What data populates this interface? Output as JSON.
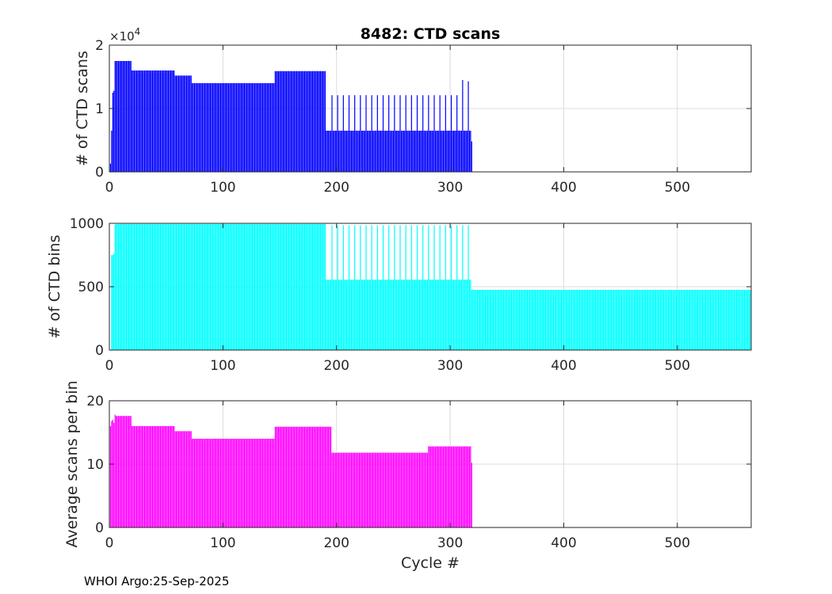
{
  "figure": {
    "title": "8482: CTD scans",
    "xlabel": "Cycle #",
    "footer": "WHOI Argo:25-Sep-2025"
  },
  "chart_data": [
    {
      "type": "bar",
      "id": "scans",
      "title": "8482: CTD scans",
      "ylabel": "# of CTD scans",
      "xlabel": "",
      "color": "#0000ff",
      "xlim": [
        0,
        565
      ],
      "ylim": [
        0,
        20000
      ],
      "xticks": [
        0,
        100,
        200,
        300,
        400,
        500
      ],
      "yticks": [
        0,
        10000,
        20000
      ],
      "ytick_labels": [
        "0",
        "1",
        "2"
      ],
      "exponent_label": "×10",
      "exponent_power": "4",
      "grid": true,
      "segments": [
        {
          "from": 1,
          "to": 5,
          "values": [
            1300,
            6500,
            12500,
            12800,
            17500
          ]
        },
        {
          "from": 6,
          "to": 19,
          "value": 17500
        },
        {
          "from": 20,
          "to": 57,
          "value": 16000
        },
        {
          "from": 58,
          "to": 72,
          "value": 15200
        },
        {
          "from": 73,
          "to": 145,
          "value": 14000
        },
        {
          "from": 146,
          "to": 190,
          "value": 15900
        },
        {
          "from": 191,
          "to": 318,
          "value": 6500
        },
        {
          "from": 319,
          "to": 319,
          "value": 4800
        }
      ],
      "spikes": {
        "from": 196,
        "to": 316,
        "step": 5,
        "value": 12100,
        "last_values": [
          14500,
          14300
        ]
      }
    },
    {
      "type": "bar",
      "id": "bins",
      "ylabel": "# of CTD bins",
      "xlabel": "",
      "color": "#00ffff",
      "xlim": [
        0,
        565
      ],
      "ylim": [
        0,
        1000
      ],
      "xticks": [
        0,
        100,
        200,
        300,
        400,
        500
      ],
      "yticks": [
        0,
        500,
        1000
      ],
      "ytick_labels": [
        "0",
        "500",
        "1000"
      ],
      "grid": true,
      "segments": [
        {
          "from": 1,
          "to": 5,
          "values": [
            0,
            750,
            750,
            760,
            990
          ]
        },
        {
          "from": 6,
          "to": 190,
          "value": 995
        },
        {
          "from": 191,
          "to": 318,
          "value": 555
        },
        {
          "from": 319,
          "to": 565,
          "value": 475
        }
      ],
      "spikes": {
        "from": 196,
        "to": 316,
        "step": 5,
        "value": 985,
        "last_values": [
          985,
          985
        ]
      }
    },
    {
      "type": "bar",
      "id": "avg",
      "ylabel": "Average scans per bin",
      "xlabel": "Cycle #",
      "color": "#ff00ff",
      "xlim": [
        0,
        565
      ],
      "ylim": [
        0,
        20
      ],
      "xticks": [
        0,
        100,
        200,
        300,
        400,
        500
      ],
      "yticks": [
        0,
        10,
        20
      ],
      "ytick_labels": [
        "0",
        "10",
        "20"
      ],
      "grid": true,
      "segments": [
        {
          "from": 1,
          "to": 5,
          "values": [
            16.0,
            16.8,
            17.0,
            16.5,
            17.8
          ]
        },
        {
          "from": 6,
          "to": 19,
          "value": 17.6
        },
        {
          "from": 20,
          "to": 57,
          "value": 16.0
        },
        {
          "from": 58,
          "to": 72,
          "value": 15.2
        },
        {
          "from": 73,
          "to": 145,
          "value": 14.0
        },
        {
          "from": 146,
          "to": 195,
          "value": 15.9
        },
        {
          "from": 196,
          "to": 280,
          "value": 11.8
        },
        {
          "from": 281,
          "to": 318,
          "value": 12.8
        },
        {
          "from": 319,
          "to": 319,
          "value": 10.2
        }
      ]
    }
  ]
}
